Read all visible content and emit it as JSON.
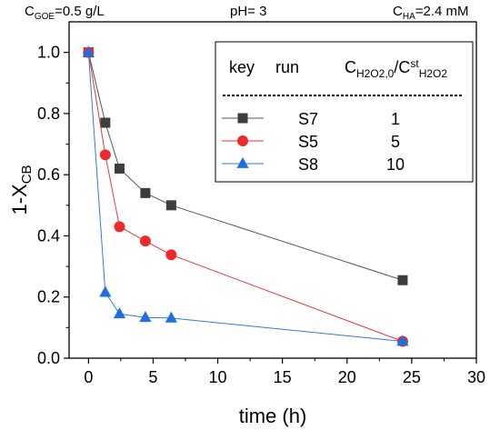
{
  "header": {
    "left": {
      "prefix": "C",
      "sub": "GOE",
      "suffix": "=0.5 g/L"
    },
    "middle": "pH= 3",
    "right": {
      "prefix": "C",
      "sub": "HA",
      "suffix": "=2.4 mM"
    }
  },
  "chart_data": {
    "type": "line",
    "xlabel": "time (h)",
    "ylabel": "1-X",
    "ylabel_sub": "CB",
    "xlim": [
      -1.5,
      30
    ],
    "ylim": [
      0,
      1.1
    ],
    "xticks": [
      0,
      5,
      10,
      15,
      20,
      25,
      30
    ],
    "yticks": [
      0.0,
      0.2,
      0.4,
      0.6,
      0.8,
      1.0
    ],
    "xtick_labels": [
      "0",
      "5",
      "10",
      "15",
      "20",
      "25",
      "30"
    ],
    "ytick_labels": [
      "0.0",
      "0.2",
      "0.4",
      "0.6",
      "0.8",
      "1.0"
    ],
    "legend": {
      "placement": "top-right",
      "headers": [
        "key",
        "run",
        "C",
        "H2O2,0",
        "/C",
        "st",
        "H2O2"
      ],
      "rows": [
        {
          "run": "S7",
          "value": "1"
        },
        {
          "run": "S5",
          "value": "5"
        },
        {
          "run": "S8",
          "value": "10"
        }
      ]
    },
    "series": [
      {
        "name": "S7",
        "marker": "square",
        "color": "#3d3d3d",
        "line_color": "#555555",
        "x": [
          0,
          1.3,
          2.4,
          4.4,
          6.4,
          24.3
        ],
        "y": [
          1.0,
          0.77,
          0.62,
          0.54,
          0.5,
          0.255
        ]
      },
      {
        "name": "S5",
        "marker": "circle",
        "color": "#ee2a2a",
        "line_color": "#e33a3a",
        "x": [
          0,
          1.3,
          2.4,
          4.4,
          6.4,
          24.3
        ],
        "y": [
          1.0,
          0.665,
          0.43,
          0.383,
          0.338,
          0.055
        ]
      },
      {
        "name": "S8",
        "marker": "triangle",
        "color": "#1e6fe0",
        "line_color": "#2f7ae5",
        "x": [
          0,
          1.3,
          2.4,
          4.4,
          6.4,
          24.3
        ],
        "y": [
          1.0,
          0.215,
          0.145,
          0.133,
          0.131,
          0.055
        ]
      }
    ]
  }
}
